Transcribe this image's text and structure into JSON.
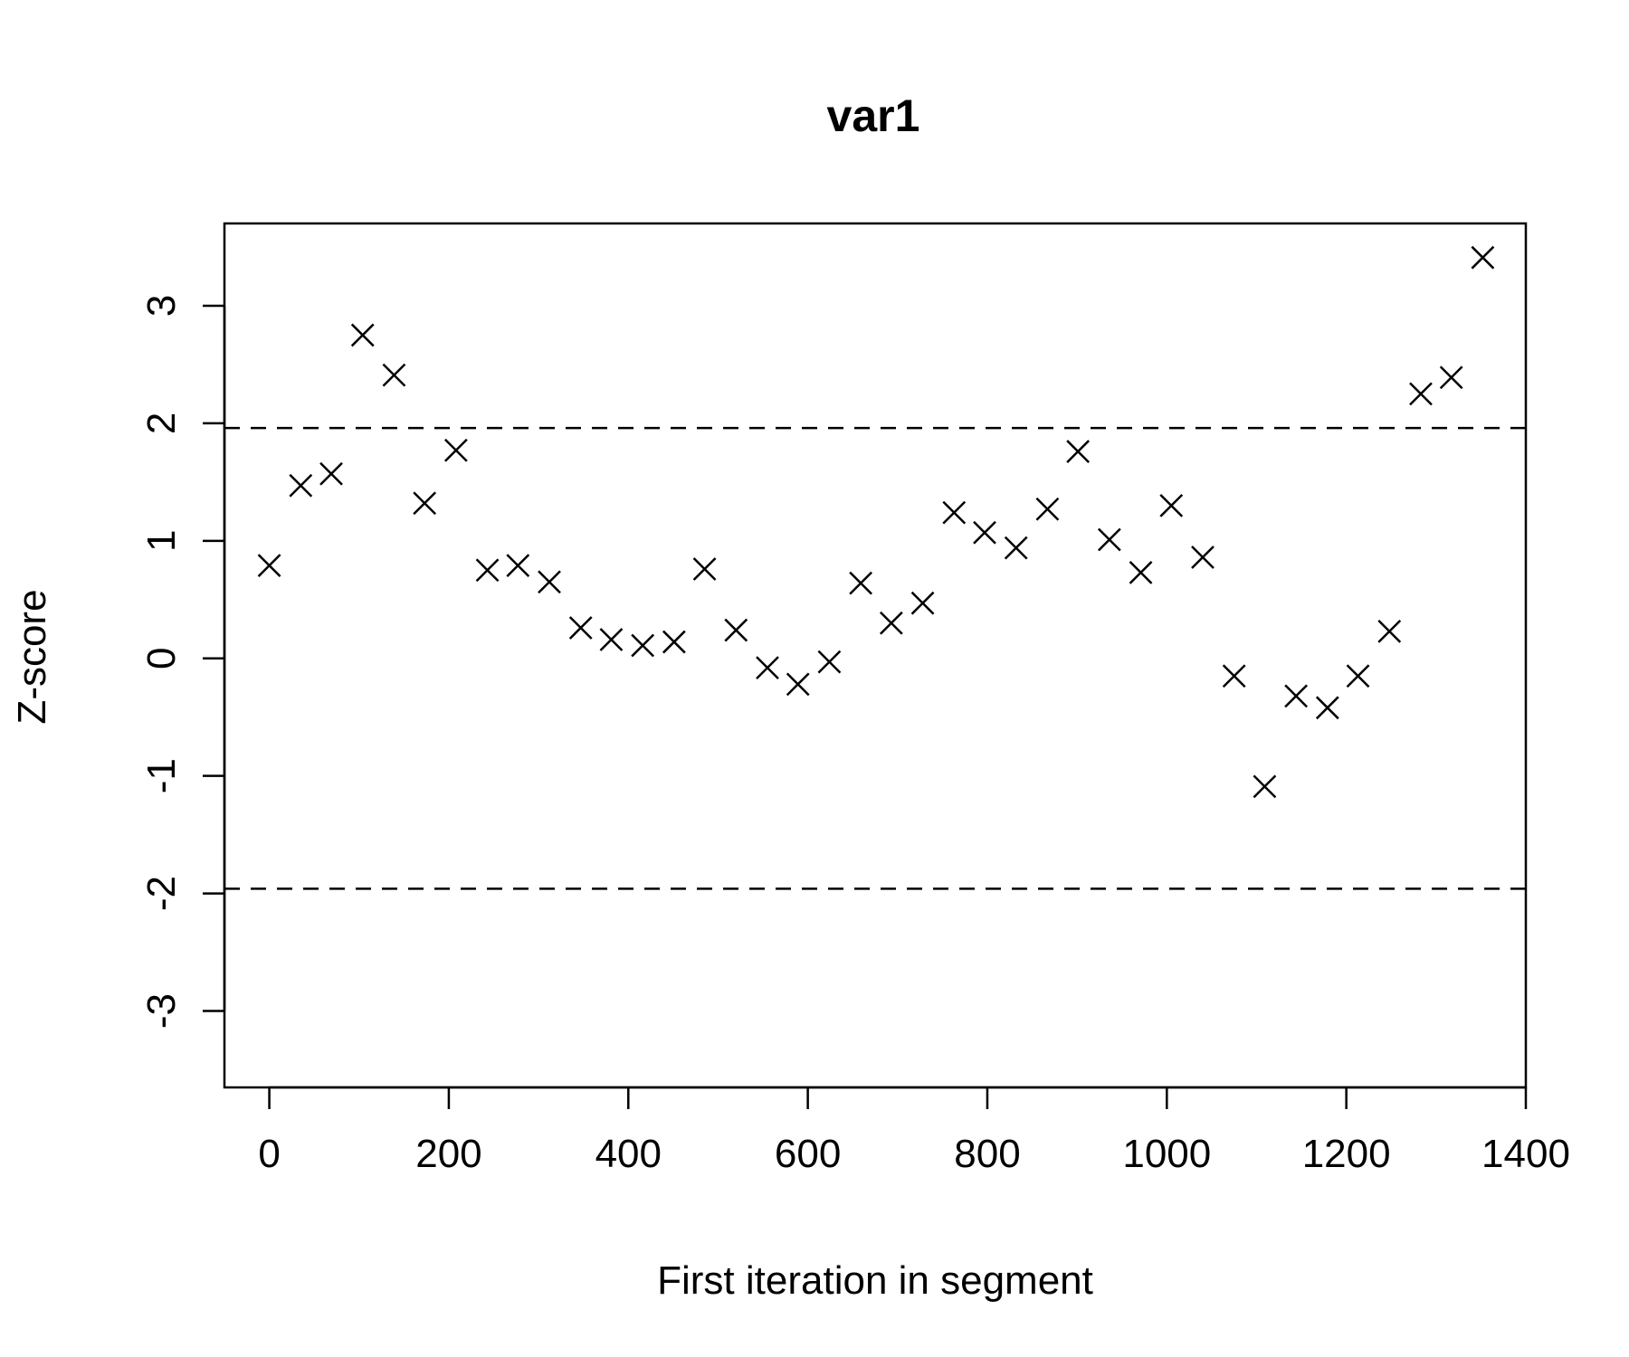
{
  "chart_data": {
    "type": "scatter",
    "title": "var1",
    "xlabel": "First iteration in segment",
    "ylabel": "Z-score",
    "xlim": [
      -50,
      1400
    ],
    "ylim": [
      -3.65,
      3.7
    ],
    "x_ticks": [
      0,
      200,
      400,
      600,
      800,
      1000,
      1200,
      1400
    ],
    "y_ticks": [
      -3,
      -2,
      -1,
      0,
      1,
      2,
      3
    ],
    "x_tick_labels": [
      "0",
      "200",
      "400",
      "600",
      "800",
      "1000",
      "1200",
      "1400"
    ],
    "y_tick_labels": [
      "-3",
      "-2",
      "-1",
      "0",
      "1",
      "2",
      "3"
    ],
    "reference_lines": [
      1.96,
      -1.96
    ],
    "marker": "x",
    "grid": false,
    "points": [
      {
        "x": 0,
        "y": 0.79
      },
      {
        "x": 35,
        "y": 1.47
      },
      {
        "x": 69,
        "y": 1.57
      },
      {
        "x": 104,
        "y": 2.75
      },
      {
        "x": 139,
        "y": 2.41
      },
      {
        "x": 173,
        "y": 1.32
      },
      {
        "x": 208,
        "y": 1.77
      },
      {
        "x": 243,
        "y": 0.75
      },
      {
        "x": 277,
        "y": 0.79
      },
      {
        "x": 312,
        "y": 0.65
      },
      {
        "x": 347,
        "y": 0.26
      },
      {
        "x": 381,
        "y": 0.16
      },
      {
        "x": 416,
        "y": 0.11
      },
      {
        "x": 451,
        "y": 0.14
      },
      {
        "x": 485,
        "y": 0.76
      },
      {
        "x": 520,
        "y": 0.24
      },
      {
        "x": 555,
        "y": -0.08
      },
      {
        "x": 589,
        "y": -0.22
      },
      {
        "x": 624,
        "y": -0.03
      },
      {
        "x": 659,
        "y": 0.64
      },
      {
        "x": 693,
        "y": 0.3
      },
      {
        "x": 728,
        "y": 0.47
      },
      {
        "x": 763,
        "y": 1.24
      },
      {
        "x": 797,
        "y": 1.07
      },
      {
        "x": 832,
        "y": 0.94
      },
      {
        "x": 867,
        "y": 1.27
      },
      {
        "x": 901,
        "y": 1.76
      },
      {
        "x": 936,
        "y": 1.01
      },
      {
        "x": 971,
        "y": 0.73
      },
      {
        "x": 1005,
        "y": 1.3
      },
      {
        "x": 1040,
        "y": 0.86
      },
      {
        "x": 1075,
        "y": -0.15
      },
      {
        "x": 1109,
        "y": -1.09
      },
      {
        "x": 1144,
        "y": -0.32
      },
      {
        "x": 1179,
        "y": -0.42
      },
      {
        "x": 1213,
        "y": -0.15
      },
      {
        "x": 1248,
        "y": 0.23
      },
      {
        "x": 1283,
        "y": 2.25
      },
      {
        "x": 1317,
        "y": 2.39
      },
      {
        "x": 1352,
        "y": 3.41
      }
    ]
  }
}
